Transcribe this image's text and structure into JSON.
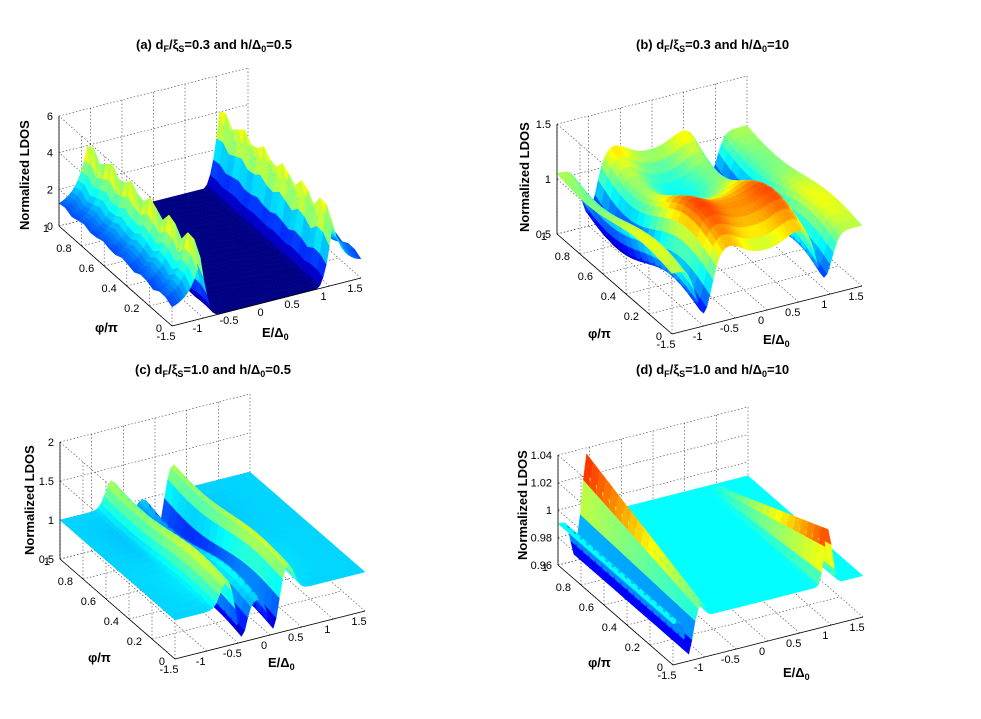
{
  "colors": {
    "jet": [
      "#00008f",
      "#0000ff",
      "#007fff",
      "#00ffff",
      "#7fff7f",
      "#ffff00",
      "#ff7f00",
      "#ff0000",
      "#7f0000"
    ],
    "grid": "#444444",
    "axis": "#000000"
  },
  "chart_data": [
    {
      "id": "a",
      "type": "surface3d",
      "title": "(a) d_F/ξ_S=0.3 and h/Δ_0=0.5",
      "title_parts": {
        "prefix": "(a) d",
        "s1": "F",
        "m1": "/ξ",
        "s2": "S",
        "m2": "=0.3 and h/Δ",
        "s3": "0",
        "suffix": "=0.5"
      },
      "xlabel": "E/Δ_0",
      "xlabel_parts": {
        "main": "E/Δ",
        "sub": "0"
      },
      "ylabel": "φ/π",
      "zlabel": "Normalized LDOS",
      "xlim": [
        -1.5,
        1.5
      ],
      "ylim": [
        0,
        1
      ],
      "zlim": [
        0,
        6
      ],
      "xticks": [
        "-1.5",
        "-1",
        "-0.5",
        "0",
        "0.5",
        "1",
        "1.5"
      ],
      "yticks": [
        "0",
        "0.2",
        "0.4",
        "0.6",
        "0.8",
        "1"
      ],
      "zticks": [
        "0",
        "2",
        "4",
        "6"
      ],
      "peaks": [
        {
          "E": -1.0,
          "height": 4.0
        },
        {
          "E": 1.1,
          "height": 3.8
        }
      ],
      "gap_value": 0.0,
      "normal_value": 1.0,
      "colorscale": "jet"
    },
    {
      "id": "b",
      "type": "surface3d",
      "title": "(b) d_F/ξ_S=0.3 and h/Δ_0=10",
      "title_parts": {
        "prefix": "(b) d",
        "s1": "F",
        "m1": "/ξ",
        "s2": "S",
        "m2": "=0.3 and h/Δ",
        "s3": "0",
        "suffix": "=10"
      },
      "xlabel": "E/Δ_0",
      "xlabel_parts": {
        "main": "E/Δ",
        "sub": "0"
      },
      "ylabel": "φ/π",
      "zlabel": "Normalized LDOS",
      "xlim": [
        -1.5,
        1.5
      ],
      "ylim": [
        0,
        1
      ],
      "zlim": [
        0.5,
        1.5
      ],
      "xticks": [
        "-1.5",
        "-1",
        "-0.5",
        "0",
        "0.5",
        "1",
        "1.5"
      ],
      "yticks": [
        "0",
        "0.2",
        "0.4",
        "0.6",
        "0.8",
        "1"
      ],
      "zticks": [
        "0.5",
        "1",
        "1.5"
      ],
      "dips": [
        {
          "E": -1.0,
          "min": 0.55
        },
        {
          "E": 0.9,
          "min": 0.6
        }
      ],
      "plateau": 1.2,
      "colorscale": "jet"
    },
    {
      "id": "c",
      "type": "surface3d",
      "title": "(c) d_F/ξ_S=1.0 and h/Δ_0=0.5",
      "title_parts": {
        "prefix": "(c) d",
        "s1": "F",
        "m1": "/ξ",
        "s2": "S",
        "m2": "=1.0 and h/Δ",
        "s3": "0",
        "suffix": "=0.5"
      },
      "xlabel": "E/Δ_0",
      "xlabel_parts": {
        "main": "E/Δ",
        "sub": "0"
      },
      "ylabel": "φ/π",
      "zlabel": "Normalized LDOS",
      "xlim": [
        -1.5,
        1.5
      ],
      "ylim": [
        0,
        1
      ],
      "zlim": [
        0.5,
        2
      ],
      "xticks": [
        "-1.5",
        "-1",
        "-0.5",
        "0",
        "0.5",
        "1",
        "1.5"
      ],
      "yticks": [
        "0",
        "0.2",
        "0.4",
        "0.6",
        "0.8",
        "1"
      ],
      "zticks": [
        "0.5",
        "1",
        "1.5",
        "2"
      ],
      "dips": [
        {
          "E": -0.45,
          "min": 0.55
        },
        {
          "E": 0.05,
          "min": 0.55
        }
      ],
      "peaks": [
        {
          "E": -0.7,
          "height": 1.5
        },
        {
          "E": 0.3,
          "height": 1.5
        }
      ],
      "colorscale": "jet"
    },
    {
      "id": "d",
      "type": "surface3d",
      "title": "(d) d_F/ξ_S=1.0 and h/Δ_0=10",
      "title_parts": {
        "prefix": "(d) d",
        "s1": "F",
        "m1": "/ξ",
        "s2": "S",
        "m2": "=1.0 and h/Δ",
        "s3": "0",
        "suffix": "=10"
      },
      "xlabel": "E/Δ_0",
      "xlabel_parts": {
        "main": "E/Δ",
        "sub": "0"
      },
      "ylabel": "φ/π",
      "zlabel": "Normalized LDOS",
      "xlim": [
        -1.5,
        1.5
      ],
      "ylim": [
        0,
        1
      ],
      "zlim": [
        0.96,
        1.04
      ],
      "xticks": [
        "-1.5",
        "-1",
        "-0.5",
        "0",
        "0.5",
        "1",
        "1.5"
      ],
      "yticks": [
        "0",
        "0.2",
        "0.4",
        "0.6",
        "0.8",
        "1"
      ],
      "zticks": [
        "0.96",
        "0.98",
        "1",
        "1.02",
        "1.04"
      ],
      "plateau": 0.99,
      "edge_low": 0.965,
      "edge_high": 1.035,
      "colorscale": "jet"
    }
  ]
}
